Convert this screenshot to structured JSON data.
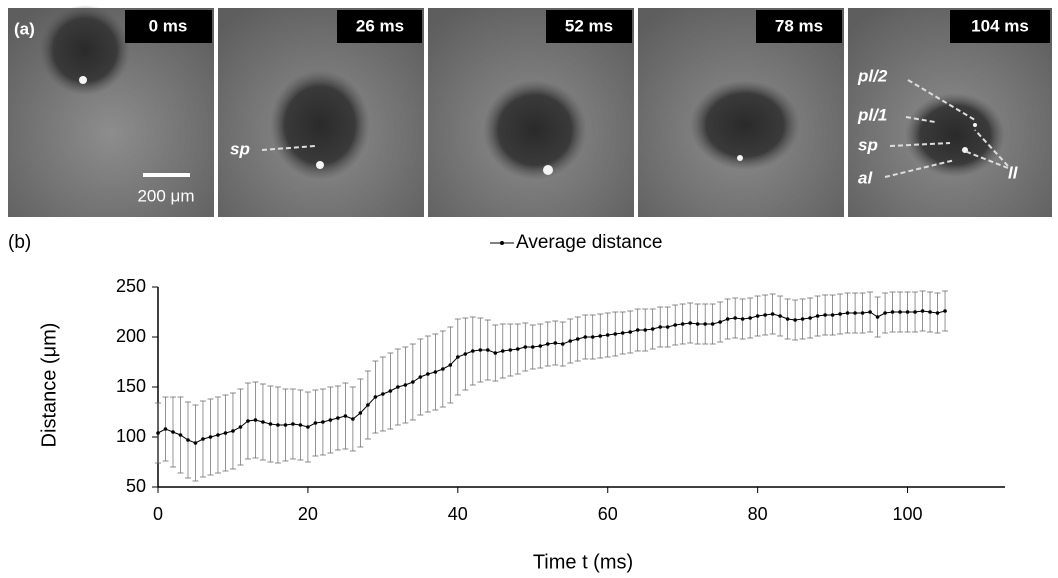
{
  "panel_a": {
    "label": "(a)",
    "scale_bar": "200 μm",
    "frames": [
      {
        "time": "0 ms"
      },
      {
        "time": "26 ms",
        "annotations": [
          "sp"
        ]
      },
      {
        "time": "52 ms"
      },
      {
        "time": "78 ms"
      },
      {
        "time": "104 ms",
        "annotations": [
          "pl/2",
          "pl/1",
          "sp",
          "al",
          "ll"
        ]
      }
    ]
  },
  "chart_data": {
    "type": "line",
    "panel_label": "(b)",
    "xlabel": "Time t (ms)",
    "ylabel": "Distance (μm)",
    "xlim": [
      0,
      113
    ],
    "ylim": [
      50,
      250
    ],
    "xticks": [
      0,
      20,
      40,
      60,
      80,
      100
    ],
    "yticks": [
      50,
      100,
      150,
      200,
      250
    ],
    "legend": "top",
    "x": [
      0,
      1,
      2,
      3,
      4,
      5,
      6,
      7,
      8,
      9,
      10,
      11,
      12,
      13,
      14,
      15,
      16,
      17,
      18,
      19,
      20,
      21,
      22,
      23,
      24,
      25,
      26,
      27,
      28,
      29,
      30,
      31,
      32,
      33,
      34,
      35,
      36,
      37,
      38,
      39,
      40,
      41,
      42,
      43,
      44,
      45,
      46,
      47,
      48,
      49,
      50,
      51,
      52,
      53,
      54,
      55,
      56,
      57,
      58,
      59,
      60,
      61,
      62,
      63,
      64,
      65,
      66,
      67,
      68,
      69,
      70,
      71,
      72,
      73,
      74,
      75,
      76,
      77,
      78,
      79,
      80,
      81,
      82,
      83,
      84,
      85,
      86,
      87,
      88,
      89,
      90,
      91,
      92,
      93,
      94,
      95,
      96,
      97,
      98,
      99,
      100,
      101,
      102,
      103,
      104,
      105
    ],
    "series": [
      {
        "name": "Average distance",
        "color": "#000000",
        "values": [
          104,
          108,
          105,
          102,
          97,
          94,
          98,
          100,
          102,
          104,
          106,
          110,
          116,
          117,
          115,
          113,
          112,
          112,
          113,
          112,
          110,
          114,
          115,
          117,
          119,
          121,
          118,
          124,
          132,
          140,
          143,
          146,
          150,
          152,
          155,
          160,
          163,
          165,
          168,
          172,
          180,
          183,
          186,
          187,
          187,
          184,
          186,
          187,
          188,
          190,
          190,
          191,
          193,
          194,
          193,
          196,
          198,
          200,
          200,
          201,
          202,
          203,
          204,
          205,
          207,
          207,
          208,
          210,
          210,
          212,
          213,
          214,
          213,
          213,
          213,
          215,
          218,
          219,
          218,
          219,
          221,
          222,
          223,
          221,
          218,
          217,
          218,
          219,
          221,
          222,
          222,
          223,
          224,
          224,
          224,
          225,
          220,
          224,
          225,
          225,
          225,
          225,
          226,
          225,
          224,
          226
        ],
        "errors": [
          30,
          32,
          35,
          38,
          38,
          38,
          38,
          38,
          38,
          38,
          38,
          38,
          38,
          38,
          38,
          38,
          38,
          36,
          35,
          35,
          35,
          33,
          33,
          33,
          32,
          33,
          32,
          34,
          34,
          36,
          37,
          38,
          38,
          38,
          38,
          38,
          38,
          38,
          38,
          38,
          38,
          36,
          34,
          32,
          30,
          28,
          27,
          26,
          25,
          24,
          22,
          22,
          22,
          22,
          22,
          22,
          22,
          22,
          22,
          22,
          22,
          22,
          21,
          21,
          21,
          21,
          20,
          20,
          20,
          20,
          20,
          20,
          20,
          20,
          20,
          20,
          20,
          20,
          20,
          20,
          20,
          20,
          20,
          20,
          20,
          20,
          20,
          20,
          20,
          20,
          20,
          20,
          20,
          20,
          20,
          20,
          20,
          20,
          20,
          20,
          20,
          20,
          20,
          20,
          20,
          20
        ]
      }
    ]
  }
}
